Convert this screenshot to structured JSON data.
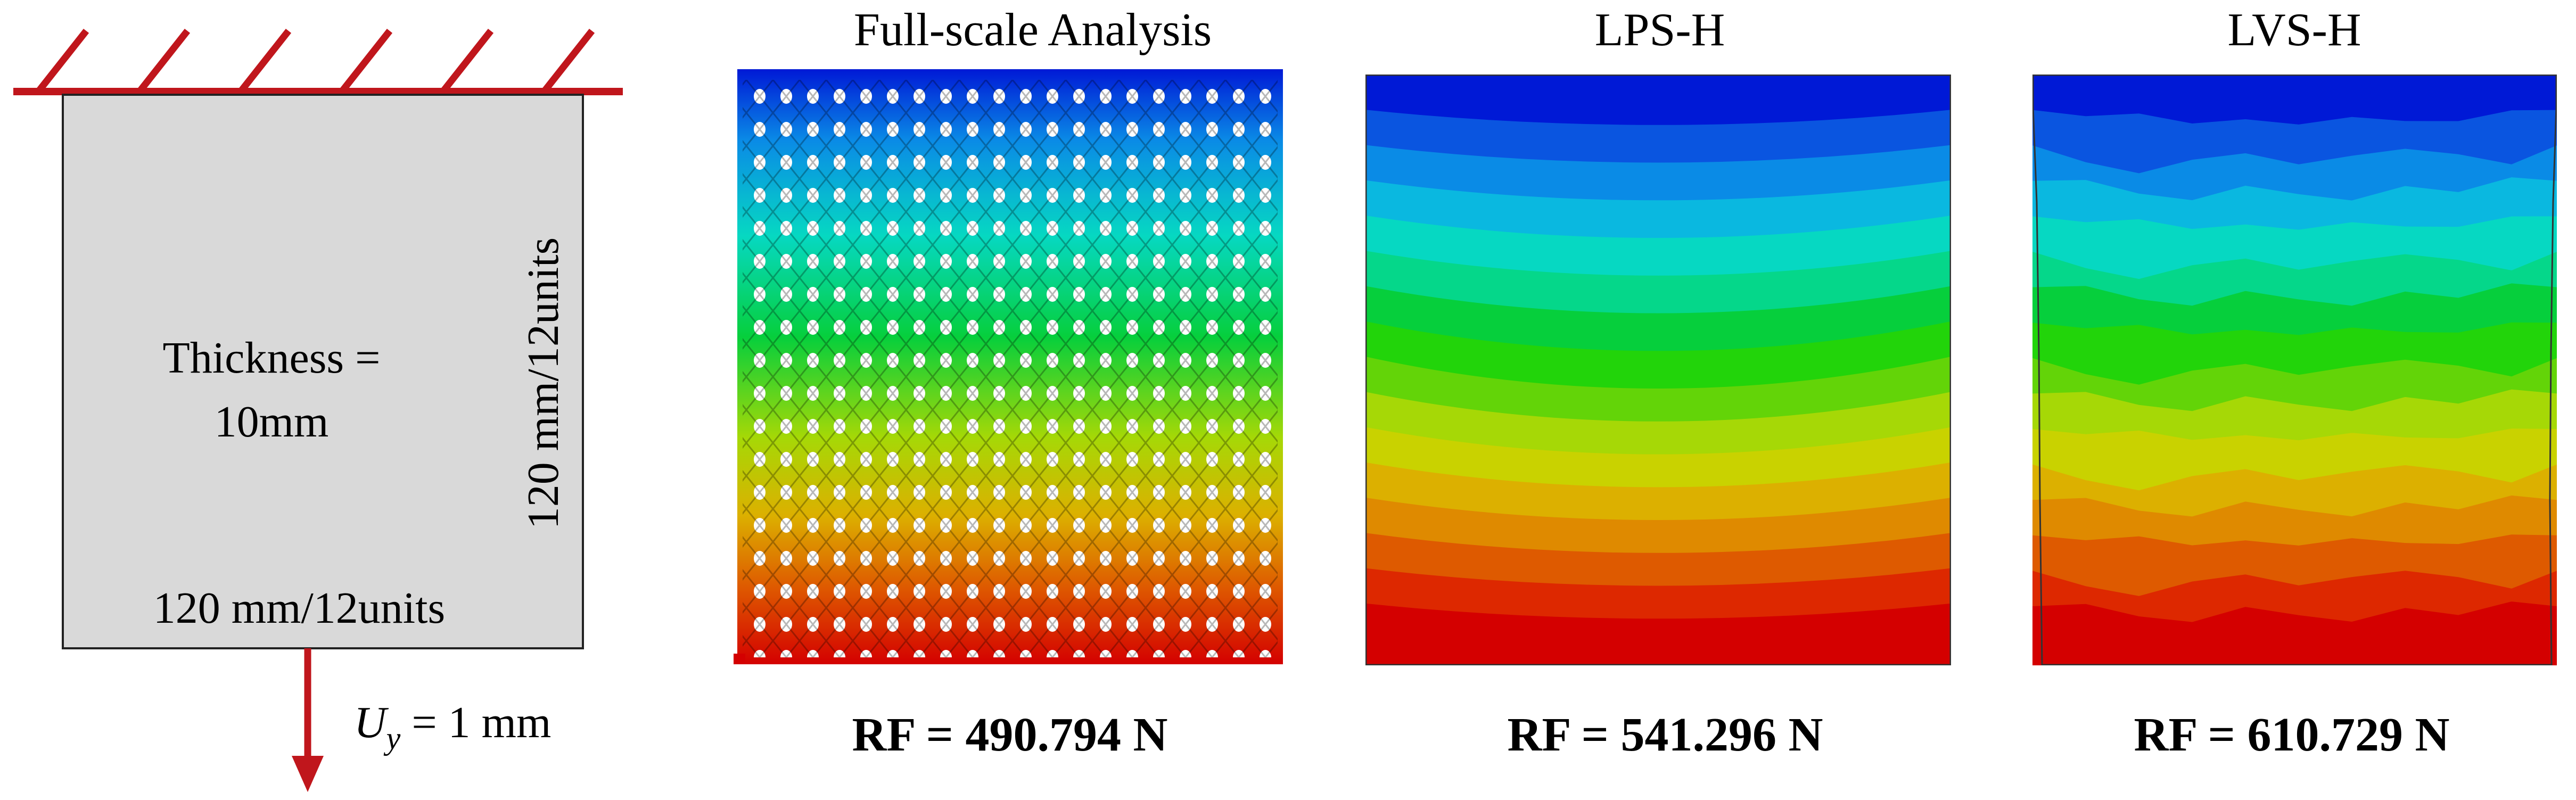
{
  "setup": {
    "thickness_line1": "Thickness =",
    "thickness_line2": "10mm",
    "width_label": "120 mm/12units",
    "height_label": "120 mm/12units",
    "load_symbol": "U",
    "load_subscript": "y",
    "load_value": " = 1 mm"
  },
  "panels": [
    {
      "title": "Full-scale Analysis",
      "result": "RF = 490.794 N"
    },
    {
      "title": "LPS-H",
      "result": "RF = 541.296 N"
    },
    {
      "title": "LVS-H",
      "result": "RF = 610.729 N"
    }
  ],
  "colors": {
    "support": "#c0161c",
    "plate_fill": "#d9d9d9",
    "contour": [
      "#0019d6",
      "#0a55e0",
      "#0a8be6",
      "#0ab8e0",
      "#06d8c2",
      "#05d78a",
      "#06cf3c",
      "#22d40a",
      "#63d408",
      "#a6d806",
      "#c9d200",
      "#dcb000",
      "#df8a00",
      "#de5a00",
      "#dd2800",
      "#d40000"
    ]
  }
}
